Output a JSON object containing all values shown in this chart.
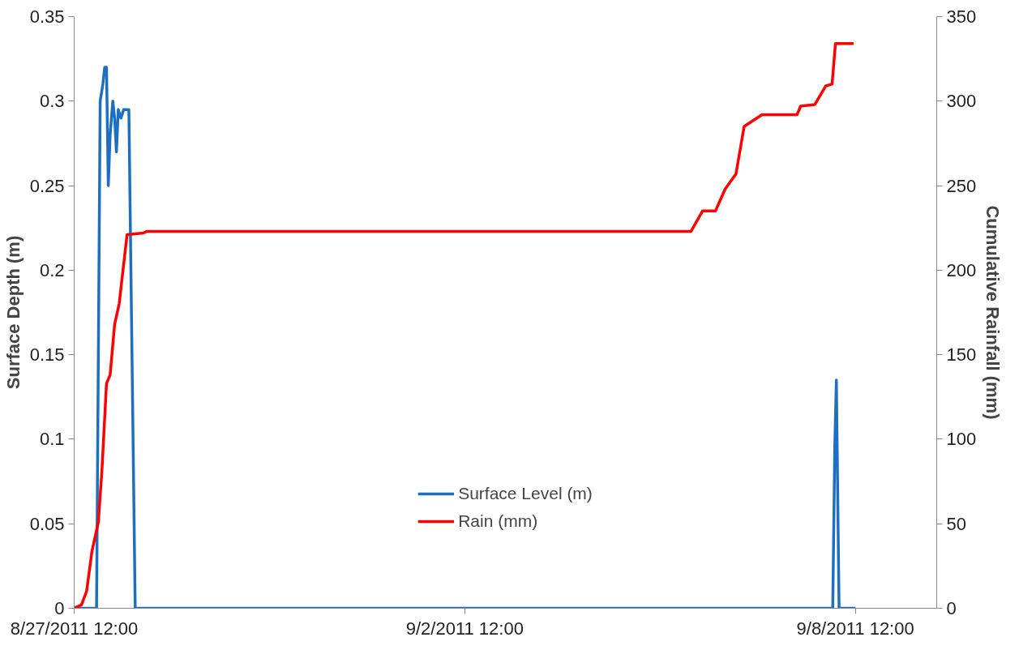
{
  "chart_data": {
    "type": "line",
    "xlabel": null,
    "ylabel": "Surface Depth (m)",
    "y2label": "Cumulative Rainfall (mm)",
    "series": [
      {
        "name": "Surface Level (m)",
        "color": "#1f6fc0",
        "x": [
          "2011-08-27T12:00",
          "2011-08-27T20:15",
          "2011-08-27T21:35",
          "2011-08-27T22:35",
          "2011-08-27T23:15",
          "2011-08-27T23:55",
          "2011-08-28T00:35",
          "2011-08-28T01:15",
          "2011-08-28T02:15",
          "2011-08-28T02:55",
          "2011-08-28T03:35",
          "2011-08-28T04:15",
          "2011-08-28T05:15",
          "2011-08-28T06:15",
          "2011-08-28T08:10",
          "2011-08-28T10:30",
          "2011-09-08T03:40",
          "2011-09-08T04:25",
          "2011-09-08T05:00",
          "2011-09-08T06:00",
          "2011-09-08T12:00"
        ],
        "values": [
          0,
          0,
          0.3,
          0.31,
          0.32,
          0.32,
          0.25,
          0.28,
          0.3,
          0.29,
          0.27,
          0.295,
          0.29,
          0.295,
          0.295,
          0,
          0,
          0.095,
          0.135,
          0,
          0
        ]
      },
      {
        "name": "Rain (mm)",
        "color": "#ff0000",
        "axis": "y2",
        "x": [
          "2011-08-27T12:00",
          "2011-08-27T14:40",
          "2011-08-27T16:35",
          "2011-08-27T18:35",
          "2011-08-27T20:55",
          "2011-08-27T22:15",
          "2011-08-27T23:55",
          "2011-08-28T01:15",
          "2011-08-28T02:55",
          "2011-08-28T04:35",
          "2011-08-28T07:30",
          "2011-08-28T13:30",
          "2011-08-28T14:50",
          "2011-09-05T22:50",
          "2011-09-05T23:25",
          "2011-09-06T03:40",
          "2011-09-06T08:25",
          "2011-09-06T12:00",
          "2011-09-06T16:00",
          "2011-09-06T19:00",
          "2011-09-07T01:35",
          "2011-09-07T14:30",
          "2011-09-07T15:50",
          "2011-09-07T21:05",
          "2011-09-08T01:05",
          "2011-09-08T03:25",
          "2011-09-08T04:40",
          "2011-09-08T11:20"
        ],
        "values": [
          0,
          2,
          10,
          34,
          51,
          82,
          133,
          138,
          168,
          180,
          221,
          222,
          223,
          223,
          223,
          235,
          235,
          248,
          257,
          285,
          292,
          292,
          297,
          298,
          309,
          310,
          334,
          334
        ]
      }
    ],
    "xlim": [
      "2011-08-27T12:00",
      "2011-09-09T18:00"
    ],
    "xticks": [
      {
        "value": "2011-08-27T12:00",
        "label": "8/27/2011 12:00"
      },
      {
        "value": "2011-09-02T12:00",
        "label": "9/2/2011 12:00"
      },
      {
        "value": "2011-09-08T12:00",
        "label": "9/8/2011 12:00"
      }
    ],
    "ylim": [
      0,
      0.35
    ],
    "yticks": [
      0,
      0.05,
      0.1,
      0.15,
      0.2,
      0.25,
      0.3,
      0.35
    ],
    "y2lim": [
      0,
      350
    ],
    "y2ticks": [
      0,
      50,
      100,
      150,
      200,
      250,
      300,
      350
    ],
    "grid": false,
    "legend": "bottom",
    "marker": "none",
    "line_style": "solid"
  }
}
